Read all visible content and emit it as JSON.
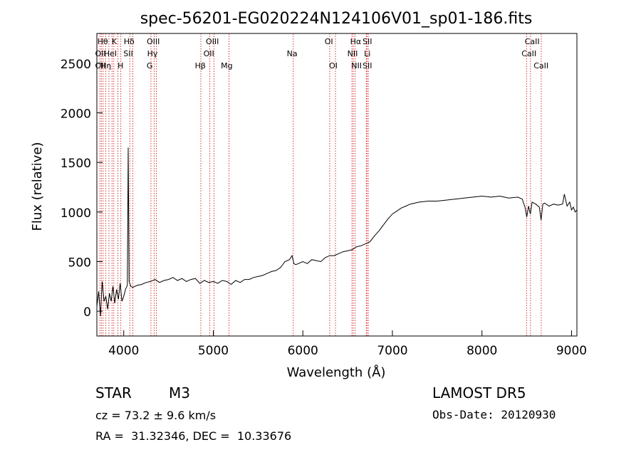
{
  "chart_data": {
    "type": "line",
    "title": "spec-56201-EG020224N124106V01_sp01-186.fits",
    "xlabel": "Wavelength (Å)",
    "ylabel": "Flux (relative)",
    "xlim": [
      3700,
      9060
    ],
    "ylim": [
      -250,
      2800
    ],
    "x_ticks": [
      4000,
      5000,
      6000,
      7000,
      8000,
      9000
    ],
    "y_ticks": [
      0,
      500,
      1000,
      1500,
      2000,
      2500
    ],
    "grid": false,
    "line_color": "#000000",
    "marker_color": "#cc0000",
    "series": [
      {
        "x": [
          3700,
          3720,
          3740,
          3760,
          3780,
          3800,
          3820,
          3840,
          3860,
          3880,
          3900,
          3920,
          3940,
          3960,
          3980,
          4000,
          4020,
          4040,
          4050,
          4060,
          4080,
          4100,
          4150,
          4200,
          4250,
          4300,
          4350,
          4400,
          4450,
          4500,
          4550,
          4600,
          4650,
          4700,
          4750,
          4800,
          4850,
          4900,
          4950,
          5000,
          5050,
          5100,
          5150,
          5200,
          5250,
          5300,
          5350,
          5400,
          5450,
          5500,
          5550,
          5600,
          5650,
          5700,
          5750,
          5800,
          5850,
          5880,
          5900,
          5920,
          5950,
          6000,
          6050,
          6100,
          6150,
          6200,
          6250,
          6300,
          6350,
          6400,
          6450,
          6500,
          6550,
          6600,
          6650,
          6700,
          6750,
          6800,
          6850,
          6900,
          6950,
          7000,
          7050,
          7100,
          7150,
          7200,
          7300,
          7400,
          7500,
          7600,
          7700,
          7800,
          7900,
          8000,
          8100,
          8200,
          8300,
          8400,
          8450,
          8480,
          8500,
          8520,
          8540,
          8560,
          8600,
          8640,
          8660,
          8680,
          8700,
          8750,
          8800,
          8850,
          8900,
          8920,
          8950,
          8980,
          9000,
          9020,
          9040,
          9060
        ],
        "y": [
          50,
          200,
          -50,
          300,
          100,
          150,
          20,
          180,
          100,
          250,
          80,
          220,
          120,
          280,
          100,
          150,
          220,
          260,
          1650,
          300,
          250,
          240,
          260,
          270,
          290,
          300,
          320,
          290,
          310,
          320,
          340,
          310,
          330,
          300,
          320,
          330,
          280,
          310,
          290,
          300,
          280,
          310,
          300,
          270,
          310,
          290,
          320,
          320,
          340,
          350,
          360,
          380,
          400,
          410,
          440,
          500,
          520,
          560,
          480,
          470,
          480,
          500,
          480,
          520,
          510,
          500,
          540,
          560,
          560,
          580,
          600,
          610,
          620,
          650,
          660,
          680,
          700,
          760,
          810,
          870,
          930,
          980,
          1010,
          1040,
          1060,
          1080,
          1100,
          1110,
          1110,
          1120,
          1130,
          1140,
          1150,
          1160,
          1150,
          1160,
          1140,
          1150,
          1130,
          1050,
          950,
          1060,
          980,
          1100,
          1080,
          1050,
          920,
          1080,
          1090,
          1060,
          1080,
          1070,
          1080,
          1180,
          1060,
          1100,
          1020,
          1050,
          1000,
          1020
        ]
      }
    ],
    "line_markers": [
      {
        "wavelength": 3734,
        "label": "OII"
      },
      {
        "wavelength": 3750,
        "label": "Hθ"
      },
      {
        "wavelength": 3770,
        "label": "OII"
      },
      {
        "wavelength": 3798,
        "label": "Hη"
      },
      {
        "wavelength": 3835,
        "label": "Hη"
      },
      {
        "wavelength": 3869,
        "label": "HeI"
      },
      {
        "wavelength": 3889,
        "label": "HeI"
      },
      {
        "wavelength": 3934,
        "label": "K"
      },
      {
        "wavelength": 3968,
        "label": "H"
      },
      {
        "wavelength": 4068,
        "label": "SII"
      },
      {
        "wavelength": 4102,
        "label": "Hδ"
      },
      {
        "wavelength": 4304,
        "label": "G"
      },
      {
        "wavelength": 4340,
        "label": "Hγ"
      },
      {
        "wavelength": 4363,
        "label": "OIII"
      },
      {
        "wavelength": 4861,
        "label": "Hβ"
      },
      {
        "wavelength": 4959,
        "label": "OIII"
      },
      {
        "wavelength": 5007,
        "label": "OIII"
      },
      {
        "wavelength": 5175,
        "label": "Mg"
      },
      {
        "wavelength": 5893,
        "label": "Na"
      },
      {
        "wavelength": 6300,
        "label": "OI"
      },
      {
        "wavelength": 6364,
        "label": "OI"
      },
      {
        "wavelength": 6548,
        "label": "NII"
      },
      {
        "wavelength": 6563,
        "label": "Hα"
      },
      {
        "wavelength": 6583,
        "label": "NII"
      },
      {
        "wavelength": 6708,
        "label": "Li"
      },
      {
        "wavelength": 6716,
        "label": "SII"
      },
      {
        "wavelength": 6731,
        "label": "SII"
      },
      {
        "wavelength": 8498,
        "label": "CaII"
      },
      {
        "wavelength": 8542,
        "label": "CaII"
      },
      {
        "wavelength": 8662,
        "label": "CaII"
      }
    ],
    "marker_label_slots": [
      {
        "wavelength": 3765,
        "row": 0,
        "text": "Hθ"
      },
      {
        "wavelength": 3895,
        "row": 0,
        "text": "K"
      },
      {
        "wavelength": 4060,
        "row": 0,
        "text": "Hδ"
      },
      {
        "wavelength": 4330,
        "row": 0,
        "text": "OIII"
      },
      {
        "wavelength": 4990,
        "row": 0,
        "text": "OIII"
      },
      {
        "wavelength": 6290,
        "row": 0,
        "text": "OI"
      },
      {
        "wavelength": 6590,
        "row": 0,
        "text": "Hα"
      },
      {
        "wavelength": 6720,
        "row": 0,
        "text": "SII"
      },
      {
        "wavelength": 8560,
        "row": 0,
        "text": "CaII"
      },
      {
        "wavelength": 3740,
        "row": 1,
        "text": "OII"
      },
      {
        "wavelength": 3850,
        "row": 1,
        "text": "HeI"
      },
      {
        "wavelength": 4050,
        "row": 1,
        "text": "SII"
      },
      {
        "wavelength": 4320,
        "row": 1,
        "text": "Hγ"
      },
      {
        "wavelength": 4950,
        "row": 1,
        "text": "OII"
      },
      {
        "wavelength": 5880,
        "row": 1,
        "text": "Na"
      },
      {
        "wavelength": 6555,
        "row": 1,
        "text": "NII"
      },
      {
        "wavelength": 6720,
        "row": 1,
        "text": "Li"
      },
      {
        "wavelength": 8525,
        "row": 1,
        "text": "CaII"
      },
      {
        "wavelength": 3740,
        "row": 2,
        "text": "OII"
      },
      {
        "wavelength": 3800,
        "row": 2,
        "text": "Hη"
      },
      {
        "wavelength": 3965,
        "row": 2,
        "text": "H"
      },
      {
        "wavelength": 4290,
        "row": 2,
        "text": "G"
      },
      {
        "wavelength": 4855,
        "row": 2,
        "text": "Hβ"
      },
      {
        "wavelength": 5150,
        "row": 2,
        "text": "Mg"
      },
      {
        "wavelength": 6340,
        "row": 2,
        "text": "OI"
      },
      {
        "wavelength": 6600,
        "row": 2,
        "text": "NII"
      },
      {
        "wavelength": 6720,
        "row": 2,
        "text": "SII"
      },
      {
        "wavelength": 8660,
        "row": 2,
        "text": "CaII"
      }
    ]
  },
  "info": {
    "object_type": "STAR",
    "subclass": "M3",
    "redshift": "cz = 73.2 ± 9.6 km/s",
    "coords": "RA =  31.32346, DEC =  10.33676",
    "survey": "LAMOST DR5",
    "obs_date": "Obs-Date: 20120930"
  }
}
